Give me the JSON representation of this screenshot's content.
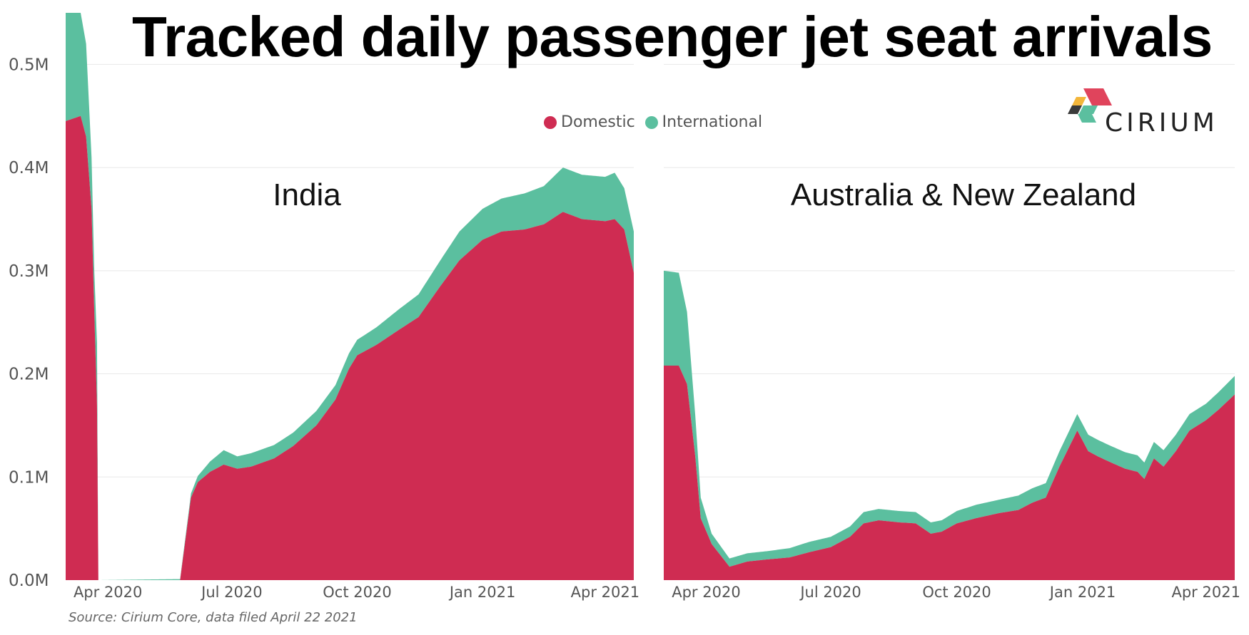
{
  "title": "Tracked daily passenger jet seat arrivals",
  "source": "Source: Cirium Core, data filed April 22 2021",
  "logo_text": "CIRIUM",
  "legend": [
    {
      "label": "Domestic",
      "color": "#cf2c52"
    },
    {
      "label": "International",
      "color": "#5bbf9f"
    }
  ],
  "colors": {
    "domestic": "#cf2c52",
    "international": "#5bbf9f",
    "grid": "#e8e8e8",
    "axis_text": "#555555"
  },
  "y_axis": {
    "ticks": [
      "0.0M",
      "0.1M",
      "0.2M",
      "0.3M",
      "0.4M",
      "0.5M"
    ],
    "tick_values": [
      0,
      0.1,
      0.2,
      0.3,
      0.4,
      0.5
    ]
  },
  "chart_data": [
    {
      "type": "area",
      "title": "India",
      "stacked": true,
      "ylim": [
        0,
        0.55
      ],
      "xlim": [
        "2020-03-01",
        "2021-04-22"
      ],
      "x_ticks": [
        "Apr 2020",
        "Jul 2020",
        "Oct 2020",
        "Jan 2021",
        "Apr 2021"
      ],
      "x_tick_dates": [
        "2020-04-01",
        "2020-07-01",
        "2020-10-01",
        "2021-01-01",
        "2021-04-01"
      ],
      "series": [
        {
          "name": "Domestic",
          "points": [
            [
              "2020-03-01",
              0.445
            ],
            [
              "2020-03-12",
              0.45
            ],
            [
              "2020-03-16",
              0.43
            ],
            [
              "2020-03-20",
              0.36
            ],
            [
              "2020-03-22",
              0.26
            ],
            [
              "2020-03-24",
              0.17
            ],
            [
              "2020-03-25",
              0.0
            ],
            [
              "2020-05-24",
              0.0
            ],
            [
              "2020-05-26",
              0.02
            ],
            [
              "2020-06-01",
              0.08
            ],
            [
              "2020-06-06",
              0.095
            ],
            [
              "2020-06-15",
              0.105
            ],
            [
              "2020-06-25",
              0.112
            ],
            [
              "2020-07-05",
              0.108
            ],
            [
              "2020-07-15",
              0.11
            ],
            [
              "2020-08-01",
              0.118
            ],
            [
              "2020-08-15",
              0.13
            ],
            [
              "2020-09-01",
              0.15
            ],
            [
              "2020-09-15",
              0.175
            ],
            [
              "2020-09-25",
              0.205
            ],
            [
              "2020-10-01",
              0.218
            ],
            [
              "2020-10-15",
              0.228
            ],
            [
              "2020-11-01",
              0.243
            ],
            [
              "2020-11-15",
              0.255
            ],
            [
              "2020-12-01",
              0.285
            ],
            [
              "2020-12-15",
              0.31
            ],
            [
              "2021-01-01",
              0.33
            ],
            [
              "2021-01-15",
              0.338
            ],
            [
              "2021-02-01",
              0.34
            ],
            [
              "2021-02-15",
              0.345
            ],
            [
              "2021-03-01",
              0.357
            ],
            [
              "2021-03-15",
              0.35
            ],
            [
              "2021-04-01",
              0.348
            ],
            [
              "2021-04-08",
              0.35
            ],
            [
              "2021-04-15",
              0.34
            ],
            [
              "2021-04-22",
              0.298
            ]
          ]
        },
        {
          "name": "International",
          "points": [
            [
              "2020-03-01",
              0.105
            ],
            [
              "2020-03-12",
              0.1
            ],
            [
              "2020-03-16",
              0.09
            ],
            [
              "2020-03-20",
              0.05
            ],
            [
              "2020-03-22",
              0.04
            ],
            [
              "2020-03-24",
              0.06
            ],
            [
              "2020-03-25",
              0.0
            ],
            [
              "2020-05-24",
              0.001
            ],
            [
              "2020-05-26",
              0.002
            ],
            [
              "2020-06-01",
              0.004
            ],
            [
              "2020-06-06",
              0.006
            ],
            [
              "2020-06-15",
              0.01
            ],
            [
              "2020-06-25",
              0.014
            ],
            [
              "2020-07-05",
              0.012
            ],
            [
              "2020-07-15",
              0.013
            ],
            [
              "2020-08-01",
              0.013
            ],
            [
              "2020-08-15",
              0.013
            ],
            [
              "2020-09-01",
              0.014
            ],
            [
              "2020-09-15",
              0.014
            ],
            [
              "2020-09-25",
              0.015
            ],
            [
              "2020-10-01",
              0.015
            ],
            [
              "2020-10-15",
              0.017
            ],
            [
              "2020-11-01",
              0.02
            ],
            [
              "2020-11-15",
              0.022
            ],
            [
              "2020-12-01",
              0.025
            ],
            [
              "2020-12-15",
              0.028
            ],
            [
              "2021-01-01",
              0.03
            ],
            [
              "2021-01-15",
              0.032
            ],
            [
              "2021-02-01",
              0.035
            ],
            [
              "2021-02-15",
              0.037
            ],
            [
              "2021-03-01",
              0.043
            ],
            [
              "2021-03-15",
              0.043
            ],
            [
              "2021-04-01",
              0.043
            ],
            [
              "2021-04-08",
              0.045
            ],
            [
              "2021-04-15",
              0.04
            ],
            [
              "2021-04-22",
              0.04
            ]
          ]
        }
      ]
    },
    {
      "type": "area",
      "title": "Australia & New Zealand",
      "stacked": true,
      "ylim": [
        0,
        0.55
      ],
      "xlim": [
        "2020-03-01",
        "2021-04-22"
      ],
      "x_ticks": [
        "Apr 2020",
        "Jul 2020",
        "Oct 2020",
        "Jan 2021",
        "Apr 2021"
      ],
      "x_tick_dates": [
        "2020-04-01",
        "2020-07-01",
        "2020-10-01",
        "2021-01-01",
        "2021-04-01"
      ],
      "series": [
        {
          "name": "Domestic",
          "points": [
            [
              "2020-03-01",
              0.208
            ],
            [
              "2020-03-12",
              0.208
            ],
            [
              "2020-03-18",
              0.19
            ],
            [
              "2020-03-24",
              0.12
            ],
            [
              "2020-03-28",
              0.06
            ],
            [
              "2020-04-05",
              0.035
            ],
            [
              "2020-04-18",
              0.013
            ],
            [
              "2020-05-01",
              0.018
            ],
            [
              "2020-05-15",
              0.02
            ],
            [
              "2020-06-01",
              0.022
            ],
            [
              "2020-06-15",
              0.027
            ],
            [
              "2020-07-01",
              0.032
            ],
            [
              "2020-07-15",
              0.042
            ],
            [
              "2020-07-25",
              0.055
            ],
            [
              "2020-08-05",
              0.058
            ],
            [
              "2020-08-20",
              0.056
            ],
            [
              "2020-09-01",
              0.055
            ],
            [
              "2020-09-12",
              0.045
            ],
            [
              "2020-09-20",
              0.047
            ],
            [
              "2020-10-01",
              0.055
            ],
            [
              "2020-10-15",
              0.06
            ],
            [
              "2020-11-01",
              0.065
            ],
            [
              "2020-11-15",
              0.068
            ],
            [
              "2020-11-25",
              0.075
            ],
            [
              "2020-12-05",
              0.08
            ],
            [
              "2020-12-15",
              0.11
            ],
            [
              "2020-12-28",
              0.145
            ],
            [
              "2021-01-05",
              0.125
            ],
            [
              "2021-01-12",
              0.12
            ],
            [
              "2021-01-20",
              0.115
            ],
            [
              "2021-02-01",
              0.108
            ],
            [
              "2021-02-10",
              0.105
            ],
            [
              "2021-02-15",
              0.098
            ],
            [
              "2021-02-22",
              0.118
            ],
            [
              "2021-03-01",
              0.11
            ],
            [
              "2021-03-10",
              0.125
            ],
            [
              "2021-03-20",
              0.145
            ],
            [
              "2021-04-01",
              0.155
            ],
            [
              "2021-04-10",
              0.165
            ],
            [
              "2021-04-22",
              0.18
            ]
          ]
        },
        {
          "name": "International",
          "points": [
            [
              "2020-03-01",
              0.092
            ],
            [
              "2020-03-12",
              0.09
            ],
            [
              "2020-03-18",
              0.07
            ],
            [
              "2020-03-24",
              0.04
            ],
            [
              "2020-03-28",
              0.02
            ],
            [
              "2020-04-05",
              0.01
            ],
            [
              "2020-04-18",
              0.008
            ],
            [
              "2020-05-01",
              0.008
            ],
            [
              "2020-05-15",
              0.008
            ],
            [
              "2020-06-01",
              0.009
            ],
            [
              "2020-06-15",
              0.01
            ],
            [
              "2020-07-01",
              0.01
            ],
            [
              "2020-07-15",
              0.01
            ],
            [
              "2020-07-25",
              0.011
            ],
            [
              "2020-08-05",
              0.011
            ],
            [
              "2020-08-20",
              0.011
            ],
            [
              "2020-09-01",
              0.011
            ],
            [
              "2020-09-12",
              0.011
            ],
            [
              "2020-09-20",
              0.011
            ],
            [
              "2020-10-01",
              0.012
            ],
            [
              "2020-10-15",
              0.013
            ],
            [
              "2020-11-01",
              0.013
            ],
            [
              "2020-11-15",
              0.014
            ],
            [
              "2020-11-25",
              0.014
            ],
            [
              "2020-12-05",
              0.014
            ],
            [
              "2020-12-15",
              0.015
            ],
            [
              "2020-12-28",
              0.016
            ],
            [
              "2021-01-05",
              0.016
            ],
            [
              "2021-01-12",
              0.016
            ],
            [
              "2021-01-20",
              0.016
            ],
            [
              "2021-02-01",
              0.016
            ],
            [
              "2021-02-10",
              0.016
            ],
            [
              "2021-02-15",
              0.016
            ],
            [
              "2021-02-22",
              0.016
            ],
            [
              "2021-03-01",
              0.016
            ],
            [
              "2021-03-10",
              0.016
            ],
            [
              "2021-03-20",
              0.016
            ],
            [
              "2021-04-01",
              0.016
            ],
            [
              "2021-04-10",
              0.017
            ],
            [
              "2021-04-22",
              0.018
            ]
          ]
        }
      ]
    }
  ]
}
